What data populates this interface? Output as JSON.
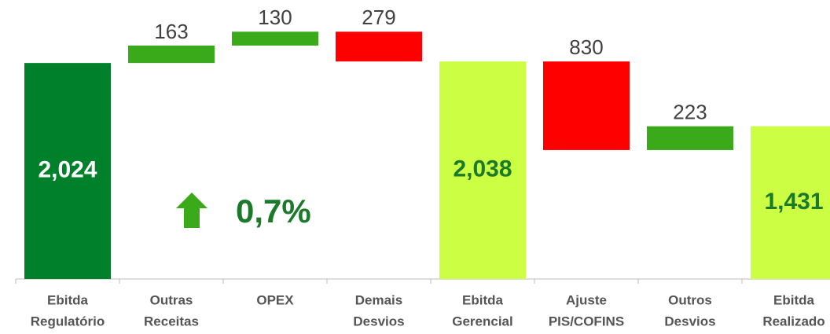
{
  "chart_data": {
    "type": "waterfall",
    "categories": [
      [
        "Ebitda",
        "Regulatório"
      ],
      [
        "Outras",
        "Receitas"
      ],
      [
        "OPEX"
      ],
      [
        "Demais",
        "Desvios"
      ],
      [
        "Ebitda",
        "Gerencial"
      ],
      [
        "Ajuste",
        "PIS/COFINS"
      ],
      [
        "Outros",
        "Desvios"
      ],
      [
        "Ebitda",
        "Realizado"
      ]
    ],
    "values": [
      2024,
      163,
      130,
      -279,
      2038,
      -830,
      223,
      1431
    ],
    "value_labels": [
      "2,024",
      "163",
      "130",
      "279",
      "2,038",
      "830",
      "223",
      "1,431"
    ],
    "measure": [
      "total",
      "relative",
      "relative",
      "relative",
      "total",
      "relative",
      "relative",
      "total"
    ],
    "colors": [
      "#00802b",
      "#3aaa1a",
      "#3aaa1a",
      "#ff0000",
      "#ccff44",
      "#ff0000",
      "#3aaa1a",
      "#ccff44"
    ],
    "label_colors": [
      "#ffffff",
      "#404040",
      "#404040",
      "#404040",
      "#1a7a2a",
      "#404040",
      "#404040",
      "#1a7a2a"
    ],
    "annotation": "0,7%"
  }
}
